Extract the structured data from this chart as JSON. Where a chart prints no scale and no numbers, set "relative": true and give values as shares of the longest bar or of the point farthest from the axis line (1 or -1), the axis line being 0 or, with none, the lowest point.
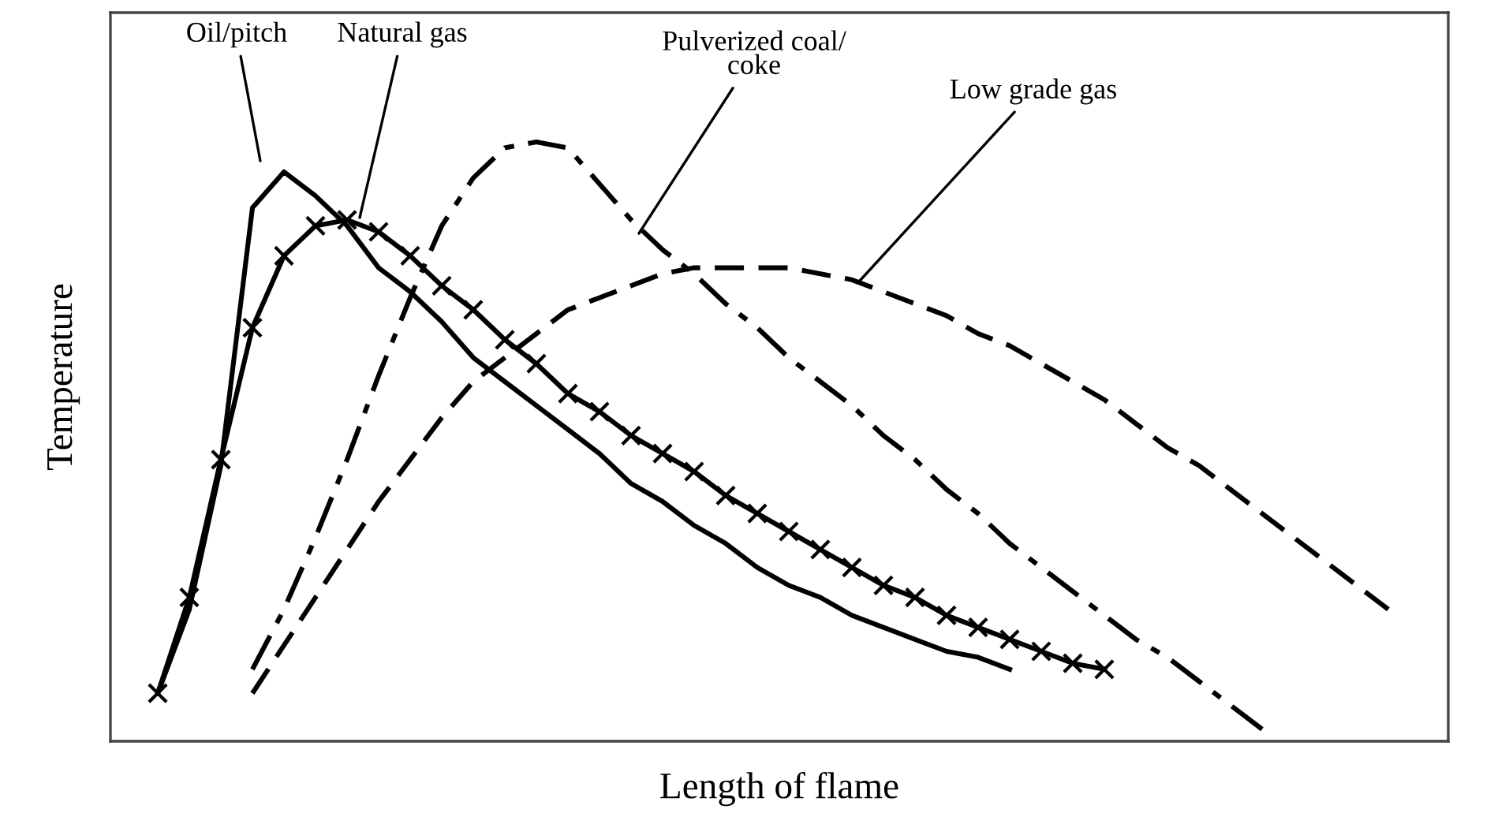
{
  "chart_data": {
    "type": "line",
    "relative": true,
    "xlabel": "Length of flame",
    "ylabel": "Temperature",
    "legend": false,
    "categories": [
      null,
      null,
      null,
      null,
      null,
      null,
      null,
      null,
      null,
      null,
      null,
      null,
      null,
      null,
      null,
      null,
      null,
      null,
      null,
      null,
      null,
      null,
      null,
      null,
      null,
      null,
      null,
      null,
      null,
      null,
      null,
      null,
      null,
      null,
      null,
      null,
      null,
      null,
      null,
      null
    ],
    "series": [
      {
        "name": "Oil/pitch",
        "color": "#000000",
        "line_style": "solid",
        "values": [
          0.08,
          0.22,
          0.46,
          0.89,
          0.95,
          0.91,
          0.86,
          0.79,
          0.75,
          0.7,
          0.64,
          0.6,
          0.56,
          0.52,
          0.48,
          0.43,
          0.4,
          0.36,
          0.33,
          0.29,
          0.26,
          0.24,
          0.21,
          0.19,
          0.17,
          0.15,
          0.14,
          0.12,
          null,
          null,
          null,
          null,
          null,
          null,
          null,
          null,
          null,
          null,
          null,
          null
        ]
      },
      {
        "name": "Natural gas",
        "color": "#000000",
        "line_style": "solid",
        "marker": "cross",
        "values": [
          0.08,
          0.24,
          0.47,
          0.69,
          0.81,
          0.86,
          0.87,
          0.85,
          0.81,
          0.76,
          0.72,
          0.67,
          0.63,
          0.58,
          0.55,
          0.51,
          0.48,
          0.45,
          0.41,
          0.38,
          0.35,
          0.32,
          0.29,
          0.26,
          0.24,
          0.21,
          0.19,
          0.17,
          0.15,
          0.13,
          0.12,
          null,
          null,
          null,
          null,
          null,
          null,
          null,
          null,
          null
        ]
      },
      {
        "name": "Pulverized coal/\ncoke",
        "color": "#000000",
        "line_style": "dashdot",
        "values": [
          null,
          null,
          null,
          0.12,
          0.22,
          0.34,
          0.47,
          0.61,
          0.74,
          0.86,
          0.94,
          0.99,
          1.0,
          0.99,
          0.93,
          0.87,
          0.82,
          0.78,
          0.73,
          0.69,
          0.64,
          0.6,
          0.56,
          0.51,
          0.47,
          0.42,
          0.38,
          0.33,
          0.29,
          0.25,
          0.21,
          0.17,
          0.14,
          0.1,
          0.06,
          0.02,
          null,
          null,
          null,
          null
        ]
      },
      {
        "name": "Low grade gas",
        "color": "#000000",
        "line_style": "dashed",
        "values": [
          null,
          null,
          null,
          0.08,
          0.16,
          0.24,
          0.32,
          0.4,
          0.47,
          0.54,
          0.6,
          0.64,
          0.68,
          0.72,
          0.74,
          0.76,
          0.78,
          0.79,
          0.79,
          0.79,
          0.79,
          0.78,
          0.77,
          0.75,
          0.73,
          0.71,
          0.68,
          0.66,
          0.63,
          0.6,
          0.57,
          0.53,
          0.49,
          0.46,
          0.42,
          0.38,
          0.34,
          0.3,
          0.26,
          0.22
        ]
      }
    ]
  }
}
